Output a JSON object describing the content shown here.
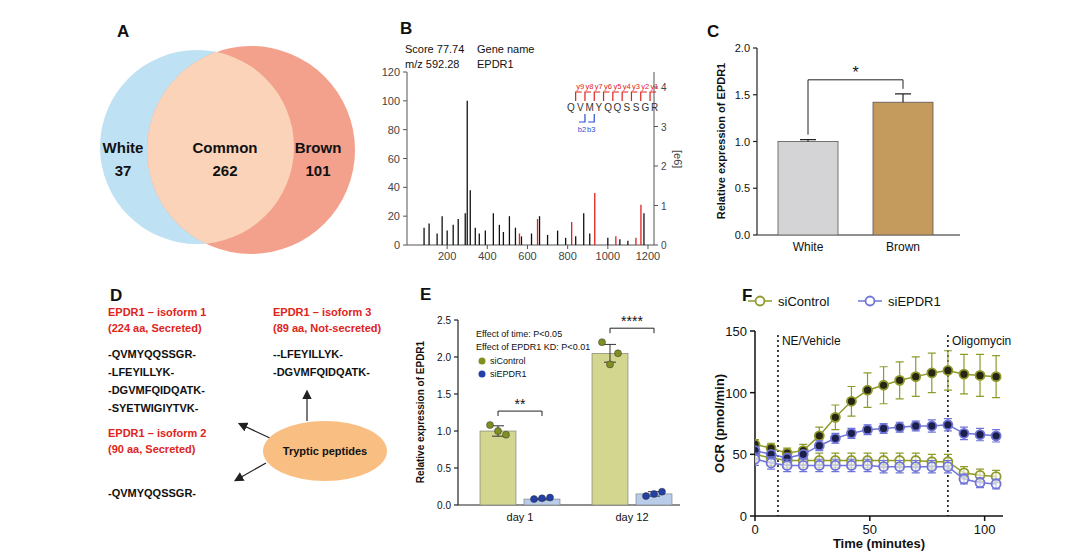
{
  "chart_data": [
    {
      "type": "venn",
      "panel_label": "A",
      "sets": [
        {
          "name": "White",
          "value": 37,
          "color": "#bfe1f4"
        },
        {
          "name": "Brown",
          "value": 101,
          "color": "#f3a08c"
        }
      ],
      "common": {
        "name": "Common",
        "value": 262,
        "color": "#fbd3b8"
      }
    },
    {
      "type": "spectrum",
      "panel_label": "B",
      "annotations": [
        "Score 77.74",
        "m/z 592.28",
        "Gene name",
        "EPDR1"
      ],
      "peptide": {
        "sequence": [
          "Q",
          "V",
          "M",
          "Y",
          "Q",
          "Q",
          "S",
          "S",
          "G",
          "R"
        ],
        "y_ions": [
          "y9",
          "y8",
          "y7",
          "y6",
          "y5",
          "y4",
          "y3",
          "y2",
          "y1"
        ],
        "b_ions": [
          "b2",
          "b3"
        ]
      },
      "series": [
        {
          "color": "#111111",
          "x": [
            85,
            110,
            150,
            175,
            200,
            230,
            255,
            290,
            300,
            315,
            340,
            360,
            390,
            430,
            460,
            480,
            510,
            540,
            570,
            620,
            660,
            700,
            750,
            790,
            840,
            880,
            910,
            1000,
            1060,
            1100,
            1180
          ],
          "values": [
            12,
            15,
            8,
            20,
            10,
            14,
            18,
            22,
            100,
            38,
            12,
            8,
            10,
            22,
            14,
            9,
            20,
            12,
            6,
            8,
            20,
            7,
            10,
            5,
            6,
            22,
            8,
            5,
            4,
            3,
            22
          ]
        },
        {
          "color": "#e0201b",
          "x": [
            560,
            650,
            820,
            935,
            1040,
            1140,
            1165
          ],
          "values": [
            8,
            18,
            16,
            36,
            6,
            5,
            28
          ]
        }
      ],
      "xlim": [
        0,
        1230
      ],
      "xticks": [
        200,
        400,
        600,
        800,
        1000,
        1200
      ],
      "ylim": [
        0,
        120
      ],
      "yticks": [
        0,
        20,
        40,
        60,
        80,
        100,
        120
      ],
      "y2lim": [
        0,
        4.38
      ],
      "y2ticks": [
        0,
        1,
        2,
        3,
        4
      ],
      "y2_label": "[e6]"
    },
    {
      "type": "bar",
      "panel_label": "C",
      "categories": [
        "White",
        "Brown"
      ],
      "values": [
        1.0,
        1.42
      ],
      "errors": [
        0.02,
        0.09
      ],
      "colors": [
        "#d4d4d6",
        "#c59b5d"
      ],
      "ylim": [
        0,
        2
      ],
      "yticks": [
        {
          "value": 0,
          "label": "0.0"
        },
        {
          "value": 0.5,
          "label": "0.5"
        },
        {
          "value": 1,
          "label": "1.0"
        },
        {
          "value": 1.5,
          "label": "1.5"
        },
        {
          "value": 2,
          "label": "2.0"
        }
      ],
      "y_label": "Relative expression of EPDR1",
      "annotations": [
        "*"
      ]
    },
    {
      "type": "bar",
      "panel_label": "E",
      "categories": [
        "day 1",
        "day 12"
      ],
      "series": [
        {
          "name": "siControl",
          "color": "#d2d68e",
          "values": [
            1.0,
            2.05
          ],
          "errors": [
            0.07,
            0.12
          ],
          "points": [
            [
              1.08,
              1.0,
              0.95
            ],
            [
              2.2,
              1.9,
              2.05
            ]
          ]
        },
        {
          "name": "siEPDR1",
          "color": "#b9cdea",
          "values": [
            0.08,
            0.15
          ],
          "errors": [
            0.01,
            0.03
          ],
          "points": [
            [
              0.08,
              0.09,
              0.1
            ],
            [
              0.12,
              0.15,
              0.18
            ]
          ]
        }
      ],
      "ylim": [
        0,
        2.5
      ],
      "yticks": [
        {
          "value": 0,
          "label": "0.0"
        },
        {
          "value": 0.5,
          "label": "0.5"
        },
        {
          "value": 1,
          "label": "1.0"
        },
        {
          "value": 1.5,
          "label": "1.5"
        },
        {
          "value": 2,
          "label": "2.0"
        },
        {
          "value": 2.5,
          "label": "2.5"
        }
      ],
      "y_label": "Relative expression of EPDR1",
      "annotations": [
        "Effect of time: P<0.05",
        "Effect of EPDR1 KD: P<0.01"
      ],
      "significance": [
        "**",
        "****"
      ],
      "legend": "top-left"
    },
    {
      "type": "line",
      "panel_label": "F",
      "x": [
        0,
        7,
        14,
        21,
        28,
        35,
        42,
        49,
        56,
        63,
        70,
        77,
        84,
        91,
        98,
        105
      ],
      "series": [
        {
          "name": "siControl",
          "color": "#8f9a2a",
          "lines": [
            {
              "marker": "filled",
              "values": [
                58,
                55,
                51,
                53,
                65,
                80,
                93,
                102,
                106,
                110,
                113,
                116,
                118,
                115,
                114,
                113
              ],
              "errors": [
                4,
                4,
                4,
                5,
                7,
                10,
                12,
                14,
                15,
                15,
                16,
                16,
                16,
                16,
                17,
                17
              ]
            },
            {
              "marker": "open",
              "values": [
                50,
                47,
                45,
                45,
                45,
                45,
                45,
                45,
                45,
                45,
                45,
                44,
                44,
                35,
                33,
                32
              ],
              "errors": [
                6,
                6,
                6,
                6,
                6,
                6,
                6,
                6,
                6,
                6,
                6,
                6,
                6,
                5,
                5,
                5
              ]
            }
          ]
        },
        {
          "name": "siEPDR1",
          "color": "#6f74d8",
          "lines": [
            {
              "marker": "filled",
              "values": [
                53,
                50,
                47,
                50,
                57,
                63,
                67,
                70,
                71,
                72,
                73,
                73,
                74,
                67,
                66,
                65
              ],
              "errors": [
                3,
                3,
                3,
                3,
                4,
                4,
                4,
                4,
                4,
                4,
                4,
                5,
                5,
                5,
                5,
                5
              ]
            },
            {
              "marker": "open",
              "values": [
                46,
                43,
                41,
                41,
                41,
                41,
                41,
                41,
                40,
                40,
                40,
                40,
                40,
                30,
                27,
                26
              ],
              "errors": [
                5,
                5,
                5,
                5,
                5,
                5,
                5,
                5,
                5,
                5,
                5,
                5,
                5,
                4,
                4,
                4
              ]
            }
          ]
        }
      ],
      "xlim": [
        0,
        108
      ],
      "xticks": [
        0,
        50,
        100
      ],
      "ylim": [
        0,
        150
      ],
      "yticks": [
        0,
        50,
        100,
        150
      ],
      "x_label": "Time (minutes)",
      "y_label": "OCR (pmol/min)",
      "events": [
        {
          "x": 10,
          "label": "NE/Vehicle"
        },
        {
          "x": 84,
          "label": "Oligomycin"
        }
      ],
      "legend": "top"
    }
  ],
  "diagram": {
    "panel_label": "D",
    "center": "Tryptic peptides",
    "isoforms": [
      {
        "name": "EPDR1 – isoform 1",
        "detail": "(224 aa, Secreted)",
        "peptides": [
          "-QVMYQQSSGR-",
          "-LFEYILLYK-",
          "-DGVMFQIDQATK-",
          "-SYETWIGIYTVK-"
        ]
      },
      {
        "name": "EPDR1 – isoform 3",
        "detail": "(89 aa, Not-secreted)",
        "peptides": [
          "--LFEYILLYK-",
          "-DGVMFQIDQATK-"
        ]
      },
      {
        "name": "EPDR1 – isoform 2",
        "detail": "(90 aa, Secreted)",
        "peptides": [
          "-QVMYQQSSGR-"
        ]
      }
    ]
  }
}
